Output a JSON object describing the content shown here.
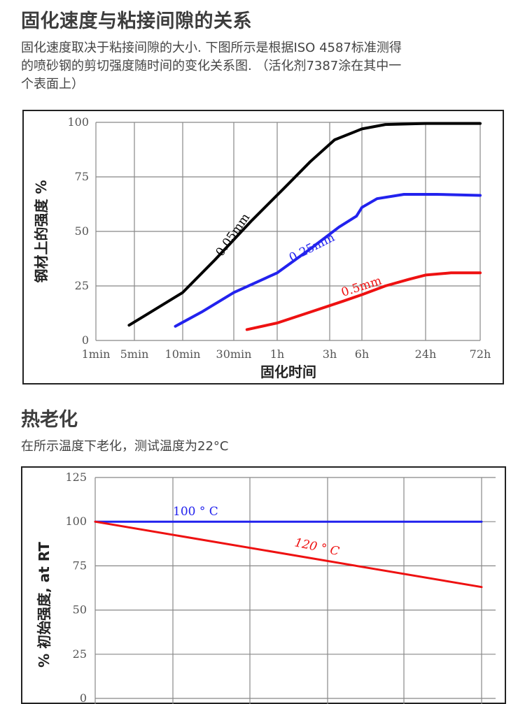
{
  "section1": {
    "title": "固化速度与粘接间隙的关系",
    "description": [
      "固化速度取决于粘接间隙的大小. 下图所示是根据ISO 4587标准测得",
      "的喷砂钢的剪切强度随时间的变化关系图. （活化剂7387涂在其中一",
      "个表面上）"
    ]
  },
  "section2": {
    "title": "热老化",
    "description": "在所示温度下老化，测试温度为22°C"
  },
  "colors": {
    "black": "#000000",
    "blue": "#2222ee",
    "red": "#ee1111",
    "grid": "#888888"
  },
  "chart_data": [
    {
      "type": "line",
      "title": "",
      "xlabel": "固化时间",
      "ylabel": "钢材上的强度 %",
      "x_scale": "log",
      "x_ticks": [
        "1min",
        "5min",
        "10min",
        "30min",
        "1h",
        "3h",
        "6h",
        "24h",
        "72h"
      ],
      "y_ticks": [
        "0",
        "25",
        "50",
        "75",
        "100"
      ],
      "ylim": [
        0,
        100
      ],
      "x_unit": "min",
      "series": [
        {
          "name": "0.05mm",
          "color": "black",
          "points": [
            [
              4,
              7
            ],
            [
              6,
              12
            ],
            [
              10,
              22
            ],
            [
              20,
              37
            ],
            [
              40,
              55
            ],
            [
              70,
              70
            ],
            [
              120,
              82
            ],
            [
              200,
              92
            ],
            [
              360,
              97
            ],
            [
              600,
              99
            ],
            [
              1440,
              99.5
            ],
            [
              4320,
              99.5
            ]
          ]
        },
        {
          "name": "0.25mm",
          "color": "blue",
          "points": [
            [
              9,
              6.5
            ],
            [
              15,
              13
            ],
            [
              30,
              22
            ],
            [
              60,
              31
            ],
            [
              120,
              42
            ],
            [
              220,
              52
            ],
            [
              320,
              57
            ],
            [
              360,
              61
            ],
            [
              500,
              65
            ],
            [
              900,
              67
            ],
            [
              1800,
              67
            ],
            [
              4320,
              66.5
            ]
          ]
        },
        {
          "name": "0.5mm",
          "color": "red",
          "points": [
            [
              37,
              5
            ],
            [
              60,
              8
            ],
            [
              120,
              13
            ],
            [
              240,
              18
            ],
            [
              360,
              21
            ],
            [
              600,
              25
            ],
            [
              1000,
              28
            ],
            [
              1440,
              30
            ],
            [
              2400,
              31
            ],
            [
              4320,
              31
            ]
          ]
        }
      ]
    },
    {
      "type": "line",
      "title": "",
      "xlabel": "",
      "ylabel": "% 初始强度, at RT",
      "y_ticks": [
        "0",
        "25",
        "50",
        "75",
        "100",
        "125"
      ],
      "ylim": [
        0,
        125
      ],
      "xlim": [
        0,
        1
      ],
      "series": [
        {
          "name": "100 ° C",
          "color": "blue",
          "points": [
            [
              0,
              100
            ],
            [
              1,
              100
            ]
          ]
        },
        {
          "name": "120 ° C",
          "color": "red",
          "points": [
            [
              0,
              100
            ],
            [
              1,
              63
            ]
          ]
        }
      ]
    }
  ]
}
